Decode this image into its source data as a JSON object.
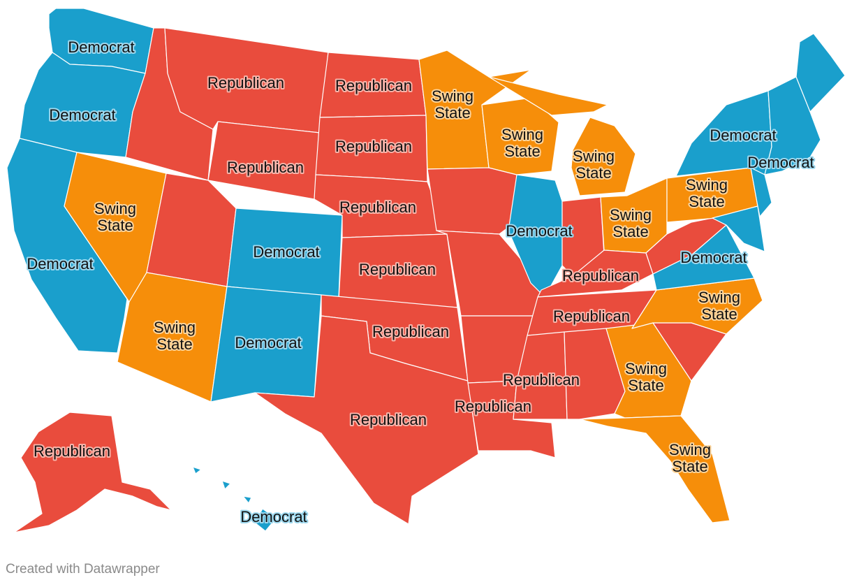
{
  "colors": {
    "republican": "#e94c3d",
    "democrat": "#1a9fcc",
    "swing": "#f68e0a",
    "background": "#ffffff",
    "label_text": "#111111"
  },
  "legend_labels": {
    "republican": "Republican",
    "democrat": "Democrat",
    "swing": "Swing State"
  },
  "regions": [
    {
      "name": "washington",
      "category": "democrat",
      "label": "Democrat"
    },
    {
      "name": "oregon",
      "category": "democrat",
      "label": "Democrat"
    },
    {
      "name": "california",
      "category": "democrat",
      "label": "Democrat"
    },
    {
      "name": "nevada",
      "category": "swing",
      "label": "Swing State"
    },
    {
      "name": "idaho",
      "category": "republican",
      "label": ""
    },
    {
      "name": "montana",
      "category": "republican",
      "label": "Republican"
    },
    {
      "name": "wyoming",
      "category": "republican",
      "label": "Republican"
    },
    {
      "name": "utah",
      "category": "republican",
      "label": ""
    },
    {
      "name": "arizona",
      "category": "swing",
      "label": "Swing State"
    },
    {
      "name": "colorado",
      "category": "democrat",
      "label": "Democrat"
    },
    {
      "name": "new-mexico",
      "category": "democrat",
      "label": "Democrat"
    },
    {
      "name": "north-dakota",
      "category": "republican",
      "label": "Republican"
    },
    {
      "name": "south-dakota",
      "category": "republican",
      "label": "Republican"
    },
    {
      "name": "nebraska",
      "category": "republican",
      "label": "Republican"
    },
    {
      "name": "kansas",
      "category": "republican",
      "label": "Republican"
    },
    {
      "name": "oklahoma",
      "category": "republican",
      "label": "Republican"
    },
    {
      "name": "texas",
      "category": "republican",
      "label": "Republican"
    },
    {
      "name": "minnesota",
      "category": "swing",
      "label": "Swing State"
    },
    {
      "name": "iowa",
      "category": "republican",
      "label": ""
    },
    {
      "name": "missouri",
      "category": "republican",
      "label": ""
    },
    {
      "name": "arkansas",
      "category": "republican",
      "label": ""
    },
    {
      "name": "louisiana",
      "category": "republican",
      "label": "Republican"
    },
    {
      "name": "wisconsin",
      "category": "swing",
      "label": "Swing State"
    },
    {
      "name": "illinois",
      "category": "democrat",
      "label": "Democrat"
    },
    {
      "name": "michigan",
      "category": "swing",
      "label": "Swing State"
    },
    {
      "name": "indiana",
      "category": "republican",
      "label": ""
    },
    {
      "name": "ohio",
      "category": "swing",
      "label": "Swing State"
    },
    {
      "name": "kentucky",
      "category": "republican",
      "label": "Republican"
    },
    {
      "name": "tennessee",
      "category": "republican",
      "label": "Republican"
    },
    {
      "name": "mississippi",
      "category": "republican",
      "label": "Republican"
    },
    {
      "name": "alabama",
      "category": "republican",
      "label": ""
    },
    {
      "name": "georgia",
      "category": "swing",
      "label": "Swing State"
    },
    {
      "name": "florida",
      "category": "swing",
      "label": "Swing State"
    },
    {
      "name": "south-carolina",
      "category": "republican",
      "label": ""
    },
    {
      "name": "north-carolina",
      "category": "swing",
      "label": "Swing State"
    },
    {
      "name": "virginia",
      "category": "democrat",
      "label": "Democrat"
    },
    {
      "name": "west-virginia",
      "category": "republican",
      "label": ""
    },
    {
      "name": "pennsylvania",
      "category": "swing",
      "label": "Swing State"
    },
    {
      "name": "new-york",
      "category": "democrat",
      "label": "Democrat"
    },
    {
      "name": "maryland-delaware",
      "category": "democrat",
      "label": ""
    },
    {
      "name": "new-jersey",
      "category": "democrat",
      "label": ""
    },
    {
      "name": "new-england",
      "category": "democrat",
      "label": "Democrat"
    },
    {
      "name": "maine",
      "category": "democrat",
      "label": ""
    },
    {
      "name": "alaska",
      "category": "republican",
      "label": "Republican"
    },
    {
      "name": "hawaii",
      "category": "democrat",
      "label": "Democrat"
    }
  ],
  "credit": "Created with Datawrapper"
}
